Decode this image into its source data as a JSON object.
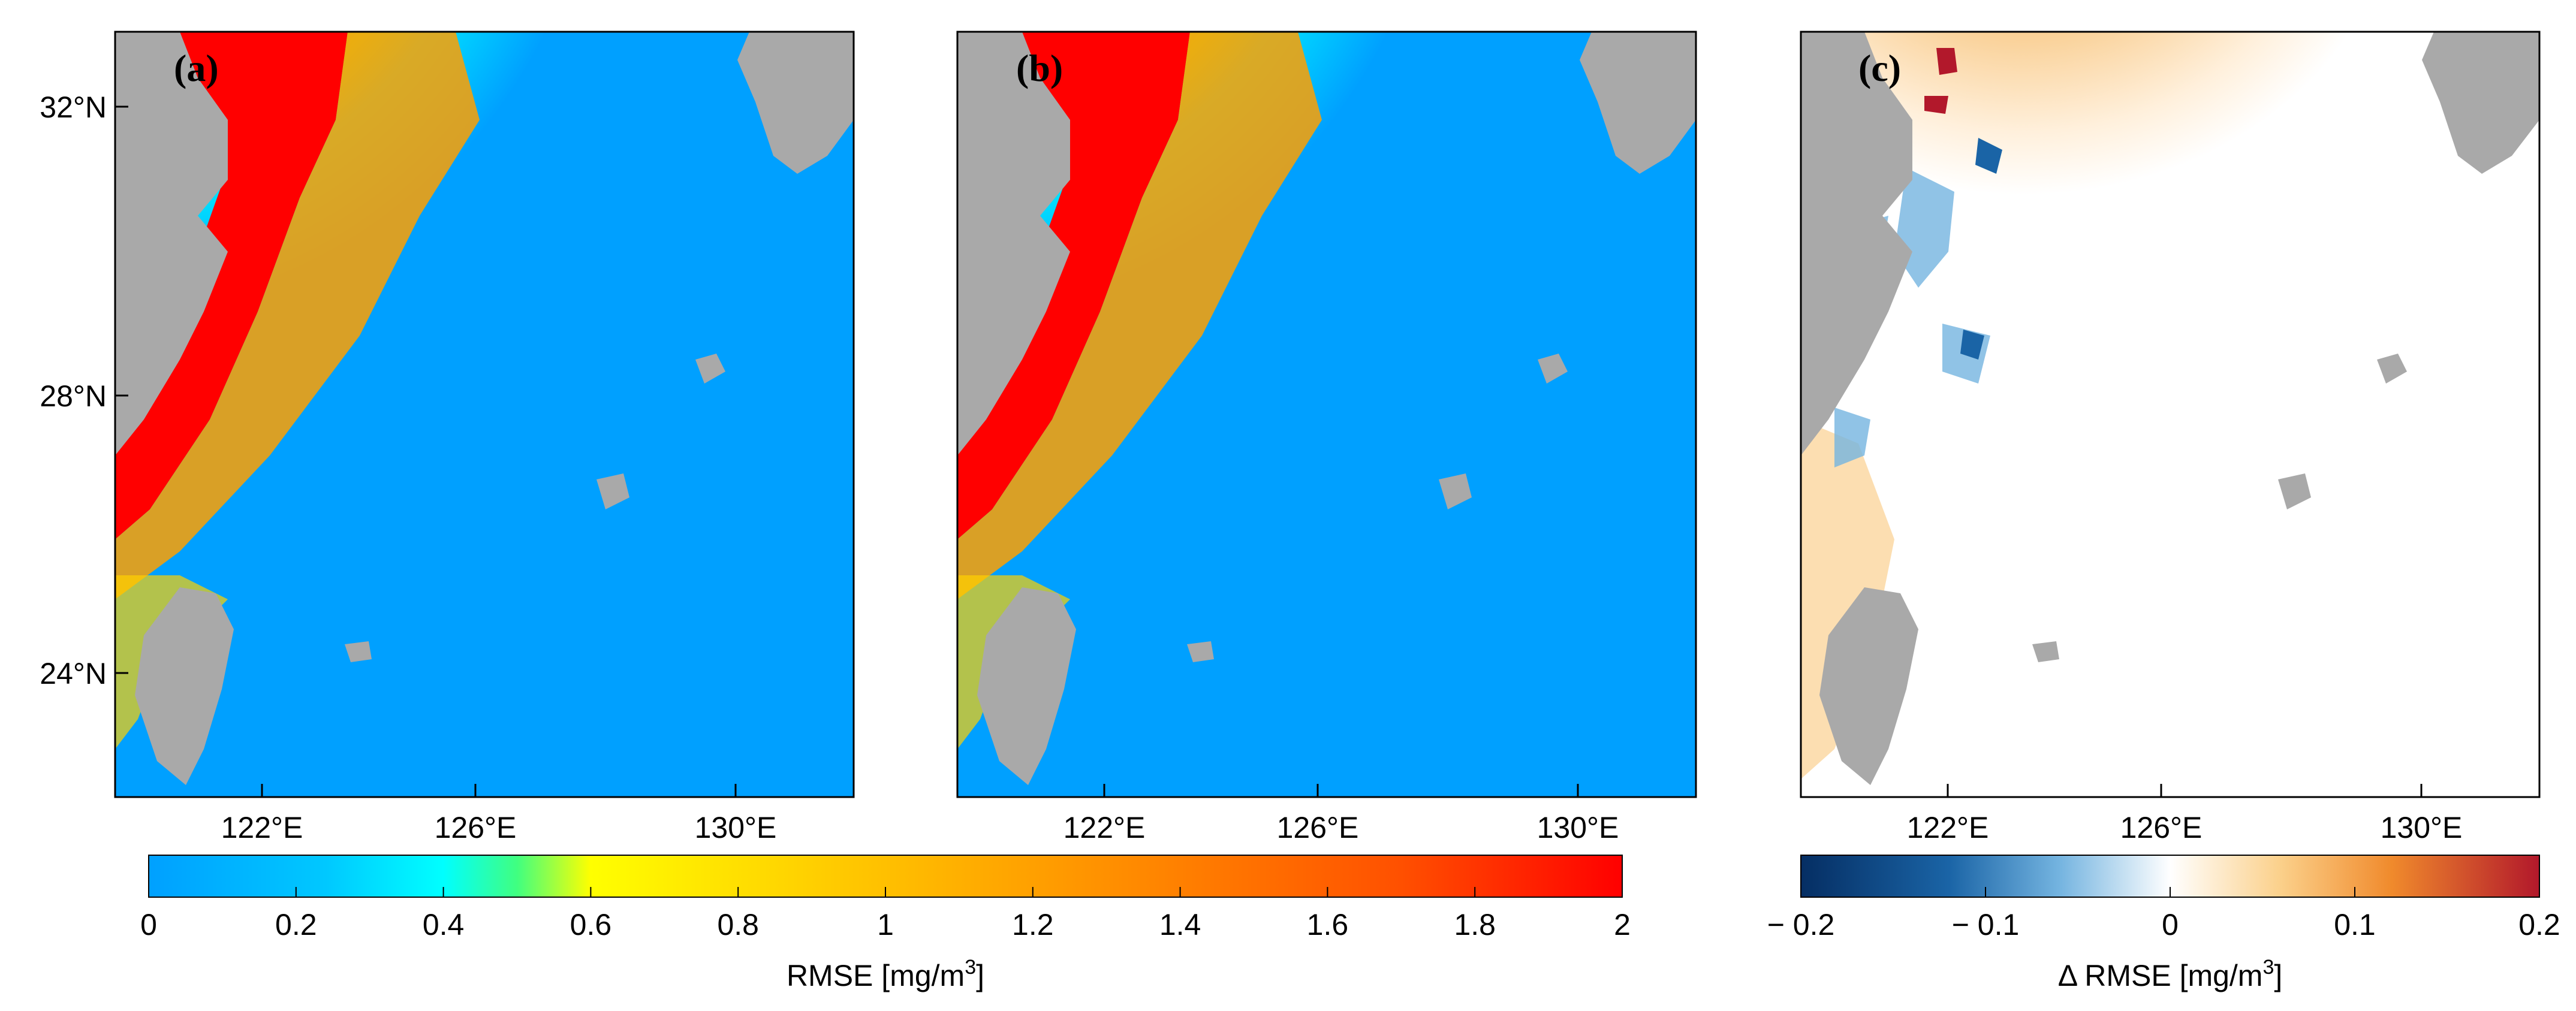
{
  "panels": [
    {
      "letter": "(a)"
    },
    {
      "letter": "(b)"
    },
    {
      "letter": "(c)"
    }
  ],
  "lat_ticks": [
    "32°N",
    "28°N",
    "24°N"
  ],
  "lon_ticks": [
    "122°E",
    "126°E",
    "130°E"
  ],
  "colorbar_rmse": {
    "ticks": [
      "0",
      "0.2",
      "0.4",
      "0.6",
      "0.8",
      "1",
      "1.2",
      "1.4",
      "1.6",
      "1.8",
      "2"
    ],
    "title": "RMSE  [mg/m",
    "sup": "3",
    "title_end": "]",
    "range": [
      0,
      2
    ],
    "colors": [
      "#00a0ff",
      "#00ffff",
      "#40ff80",
      "#ffff00",
      "#ffa000",
      "#ff4000",
      "#ff0000"
    ]
  },
  "colorbar_delta": {
    "ticks": [
      "− 0.2",
      "− 0.1",
      "0",
      "0.1",
      "0.2"
    ],
    "title": "Δ RMSE  [mg/m",
    "sup": "3",
    "title_end": "]",
    "range": [
      -0.2,
      0.2
    ],
    "colors": [
      "#052e63",
      "#2b7ab7",
      "#ffffff",
      "#f4a340",
      "#b2182b"
    ]
  },
  "colors": {
    "ocean_low": "#00a0ff",
    "land": "#a9a9a9",
    "coast_high": "#ff0000"
  }
}
